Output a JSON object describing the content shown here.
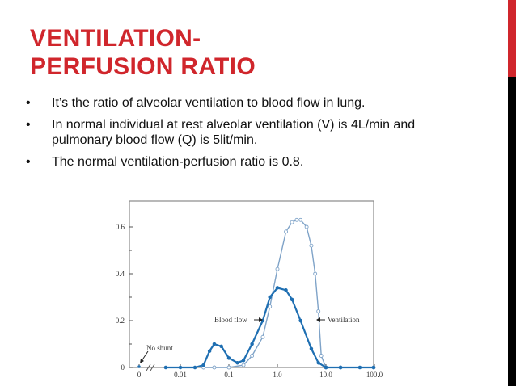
{
  "slide": {
    "title_line1": "VENTILATION-",
    "title_line2": "PERFUSION RATIO",
    "accent_color": "#d0262c",
    "bullets": [
      {
        "marker": "•",
        "text": "It’s the ratio of alveolar ventilation to blood flow in lung."
      },
      {
        "marker": "•",
        "text": "In normal individual at rest alveolar ventilation (V) is 4L/min and pulmonary blood flow (Q) is 5lit/min."
      },
      {
        "marker": "•",
        "text": "The normal ventilation-perfusion ratio is 0.8."
      }
    ]
  },
  "chart_data": {
    "type": "line",
    "title": "",
    "xlabel": "",
    "ylabel": "",
    "x_scale": "log (with break after 0)",
    "x_ticks": [
      "0",
      "0.01",
      "0.1",
      "1.0",
      "10.0",
      "100.0"
    ],
    "y_ticks": [
      "0",
      "0.2",
      "0.4",
      "0.6"
    ],
    "ylim": [
      0,
      0.7
    ],
    "grid": false,
    "annotations": [
      "No shunt",
      "Blood flow",
      "Ventilation"
    ],
    "series": [
      {
        "name": "Blood flow",
        "color": "#1f6fb2",
        "marker": "filled circle",
        "x": [
          0.005,
          0.01,
          0.02,
          0.03,
          0.04,
          0.05,
          0.07,
          0.1,
          0.15,
          0.2,
          0.3,
          0.5,
          0.7,
          1.0,
          1.5,
          2,
          3,
          5,
          7,
          10,
          20,
          50,
          100
        ],
        "y": [
          0,
          0,
          0,
          0.01,
          0.07,
          0.1,
          0.09,
          0.04,
          0.02,
          0.03,
          0.1,
          0.2,
          0.3,
          0.34,
          0.33,
          0.29,
          0.2,
          0.08,
          0.02,
          0,
          0,
          0,
          0
        ]
      },
      {
        "name": "Ventilation",
        "color": "#7fa3c8",
        "marker": "open circle",
        "x": [
          0.03,
          0.05,
          0.1,
          0.2,
          0.3,
          0.5,
          0.7,
          1.0,
          1.5,
          2,
          2.5,
          3,
          4,
          5,
          6,
          7,
          8,
          10,
          20,
          100
        ],
        "y": [
          0,
          0,
          0,
          0.01,
          0.05,
          0.13,
          0.26,
          0.42,
          0.58,
          0.62,
          0.63,
          0.63,
          0.6,
          0.52,
          0.4,
          0.24,
          0.05,
          0,
          0,
          0
        ]
      }
    ]
  }
}
